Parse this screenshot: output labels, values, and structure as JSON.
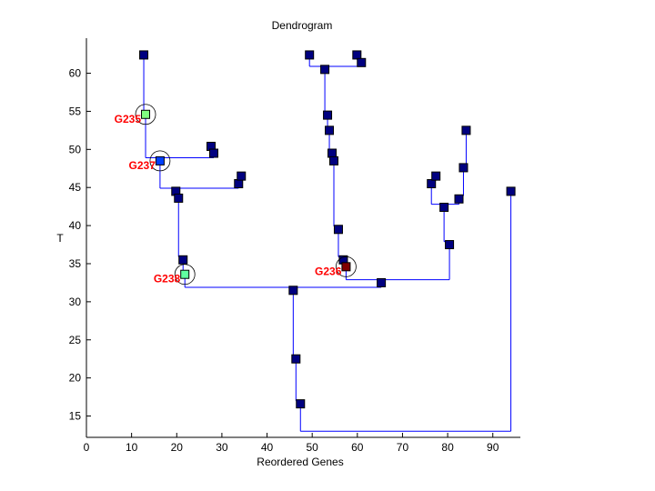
{
  "chart_data": {
    "type": "dendrogram",
    "title": "Dendrogram",
    "xlabel": "Reordered Genes",
    "ylabel": "T",
    "xlim": [
      0,
      96.1
    ],
    "ylim": [
      12.2,
      64.6
    ],
    "xticks": [
      0,
      10,
      20,
      30,
      40,
      50,
      60,
      70,
      80,
      90
    ],
    "yticks": [
      15,
      20,
      25,
      30,
      35,
      40,
      45,
      50,
      55,
      60
    ],
    "grid": false,
    "colors": {
      "link": "#0000ff",
      "node": "#000080",
      "label": "#ff0000",
      "G235": "#80ff80",
      "G237": "#0040ff",
      "G238": "#60ffa0",
      "G236": "#800000"
    },
    "root": {
      "y": 13.0,
      "children": [
        14,
        34
      ]
    },
    "nodes": [
      {
        "id": 1,
        "x": 12.7,
        "y": 62.4,
        "parent": 2
      },
      {
        "id": 2,
        "x": 13.1,
        "y": 54.6,
        "parent": 3,
        "label": "G235"
      },
      {
        "id": 3,
        "x": 16.3,
        "y": 48.5,
        "parent": 6,
        "label": "G237"
      },
      {
        "id": 4,
        "x": 27.6,
        "y": 50.4,
        "parent": 5
      },
      {
        "id": 5,
        "x": 28.2,
        "y": 49.5,
        "parent": 3
      },
      {
        "id": 6,
        "x": 19.8,
        "y": 44.5,
        "parent": 7
      },
      {
        "id": 7,
        "x": 20.4,
        "y": 43.6,
        "parent": 10
      },
      {
        "id": 8,
        "x": 33.7,
        "y": 45.5,
        "parent": 6
      },
      {
        "id": 9,
        "x": 34.3,
        "y": 46.5,
        "parent": 8
      },
      {
        "id": 10,
        "x": 21.4,
        "y": 35.5,
        "parent": 11
      },
      {
        "id": 11,
        "x": 21.8,
        "y": 33.6,
        "parent": 12,
        "label": "G238"
      },
      {
        "id": 12,
        "x": 45.8,
        "y": 31.5,
        "parent": 13
      },
      {
        "id": 13,
        "x": 46.4,
        "y": 22.5,
        "parent": 14
      },
      {
        "id": 14,
        "x": 47.4,
        "y": 16.6,
        "parent": 0
      },
      {
        "id": 15,
        "x": 49.4,
        "y": 62.4,
        "parent": 18
      },
      {
        "id": 16,
        "x": 59.9,
        "y": 62.4,
        "parent": 17
      },
      {
        "id": 17,
        "x": 60.9,
        "y": 61.4,
        "parent": 18
      },
      {
        "id": 18,
        "x": 52.8,
        "y": 60.5,
        "parent": 19
      },
      {
        "id": 19,
        "x": 53.4,
        "y": 54.5,
        "parent": 20
      },
      {
        "id": 20,
        "x": 53.8,
        "y": 52.5,
        "parent": 21
      },
      {
        "id": 21,
        "x": 54.4,
        "y": 49.5,
        "parent": 22
      },
      {
        "id": 22,
        "x": 54.8,
        "y": 48.5,
        "parent": 23
      },
      {
        "id": 23,
        "x": 55.8,
        "y": 39.5,
        "parent": 24
      },
      {
        "id": 24,
        "x": 56.9,
        "y": 35.5,
        "parent": 25
      },
      {
        "id": 25,
        "x": 57.5,
        "y": 34.6,
        "parent": 26,
        "label": "G236"
      },
      {
        "id": 26,
        "x": 65.3,
        "y": 32.5,
        "parent": 12
      },
      {
        "id": 27,
        "x": 76.4,
        "y": 45.5,
        "parent": 29
      },
      {
        "id": 28,
        "x": 77.4,
        "y": 46.5,
        "parent": 27
      },
      {
        "id": 29,
        "x": 79.2,
        "y": 42.4,
        "parent": 33
      },
      {
        "id": 30,
        "x": 82.5,
        "y": 43.5,
        "parent": 29
      },
      {
        "id": 31,
        "x": 83.5,
        "y": 47.6,
        "parent": 30
      },
      {
        "id": 32,
        "x": 84.1,
        "y": 52.5,
        "parent": 31
      },
      {
        "id": 33,
        "x": 80.4,
        "y": 37.5,
        "parent": 26
      },
      {
        "id": 34,
        "x": 94.0,
        "y": 44.5,
        "parent": 0
      }
    ]
  }
}
